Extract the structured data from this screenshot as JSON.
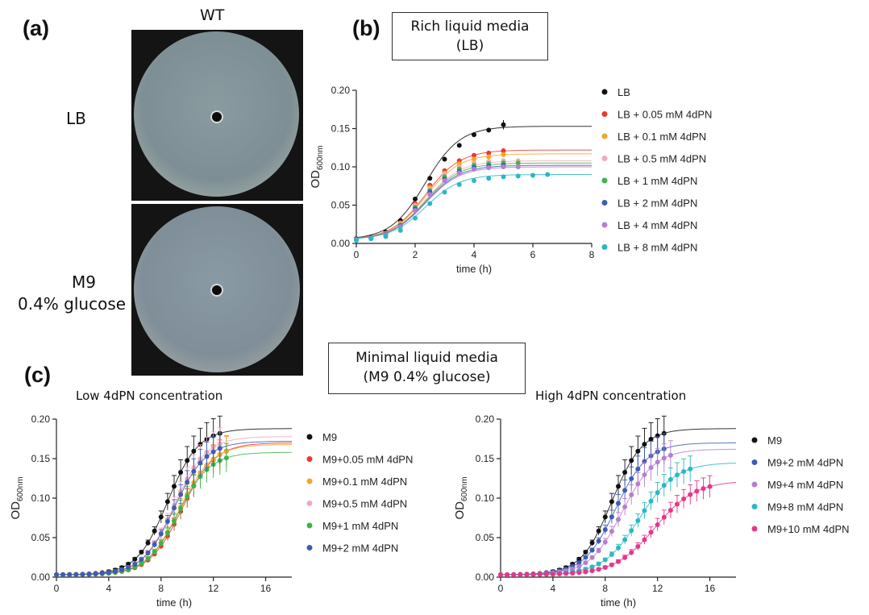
{
  "figure": {
    "panel_a": {
      "label": "(a)",
      "column_title": "WT",
      "row_labels": {
        "lb": "LB",
        "m9_line1": "M9",
        "m9_line2": "0.4% glucose"
      }
    },
    "panel_b": {
      "label": "(b)",
      "box_line1": "Rich liquid media",
      "box_line2": "(LB)"
    },
    "panel_c": {
      "label": "(c)",
      "box_line1": "Minimal liquid media",
      "box_line2": "(M9 0.4% glucose)",
      "left_title": "Low 4dPN concentration",
      "right_title": "High 4dPN concentration"
    }
  },
  "chart_data": [
    {
      "id": "b",
      "type": "scatter",
      "title": "",
      "xlabel": "time (h)",
      "ylabel": "OD",
      "ylabel_sub": "600nm",
      "xlim": [
        0,
        8
      ],
      "ylim": [
        0,
        0.2
      ],
      "xticks": [
        0,
        2,
        4,
        6,
        8
      ],
      "yticks": [
        0.0,
        0.05,
        0.1,
        0.15,
        0.2
      ],
      "x": [
        0,
        0.5,
        1,
        1.5,
        2,
        2.5,
        3,
        3.5,
        4,
        4.5,
        5,
        5.5,
        6,
        6.5
      ],
      "series": [
        {
          "name": "LB",
          "color": "#111111",
          "values": [
            0.006,
            0.008,
            0.015,
            0.03,
            0.058,
            0.085,
            0.11,
            0.128,
            0.142,
            0.148,
            0.155,
            null,
            null,
            null
          ],
          "fit_max": 0.153
        },
        {
          "name": "LB + 0.05 mM 4dPN",
          "color": "#e8392e",
          "values": [
            0.005,
            0.007,
            0.013,
            0.027,
            0.052,
            0.076,
            0.095,
            0.108,
            0.115,
            0.118,
            0.121,
            null,
            null,
            null
          ],
          "fit_max": 0.122
        },
        {
          "name": "LB + 0.1 mM 4dPN",
          "color": "#f5a623",
          "values": [
            0.005,
            0.007,
            0.013,
            0.026,
            0.05,
            0.073,
            0.092,
            0.104,
            0.11,
            0.113,
            0.116,
            null,
            null,
            null
          ],
          "fit_max": 0.117
        },
        {
          "name": "LB + 0.5 mM 4dPN",
          "color": "#f2aab8",
          "values": [
            0.005,
            0.007,
            0.012,
            0.025,
            0.049,
            0.071,
            0.09,
            0.1,
            0.105,
            0.107,
            0.108,
            0.108,
            null,
            null
          ],
          "fit_max": 0.108
        },
        {
          "name": "LB + 1 mM 4dPN",
          "color": "#3cb54a",
          "values": [
            0.005,
            0.007,
            0.012,
            0.024,
            0.047,
            0.069,
            0.087,
            0.097,
            0.102,
            0.104,
            0.105,
            0.105,
            null,
            null
          ],
          "fit_max": 0.105
        },
        {
          "name": "LB + 2 mM 4dPN",
          "color": "#3f5bb5",
          "values": [
            0.005,
            0.007,
            0.012,
            0.023,
            0.045,
            0.067,
            0.084,
            0.094,
            0.099,
            0.101,
            0.102,
            null,
            null,
            null
          ],
          "fit_max": 0.102
        },
        {
          "name": "LB + 4 mM 4dPN",
          "color": "#b57fcf",
          "values": [
            0.005,
            0.007,
            0.011,
            0.022,
            0.043,
            0.064,
            0.082,
            0.092,
            0.097,
            0.099,
            0.1,
            0.1,
            null,
            null
          ],
          "fit_max": 0.1
        },
        {
          "name": "LB + 8 mM 4dPN",
          "color": "#2bb8c4",
          "values": [
            0.004,
            0.006,
            0.009,
            0.017,
            0.033,
            0.052,
            0.067,
            0.077,
            0.082,
            0.085,
            0.087,
            0.088,
            0.089,
            0.09
          ],
          "fit_max": 0.09
        }
      ]
    },
    {
      "id": "c-low",
      "type": "scatter",
      "title": "Low 4dPN concentration",
      "xlabel": "time (h)",
      "ylabel": "OD",
      "ylabel_sub": "600nm",
      "xlim": [
        0,
        18
      ],
      "ylim": [
        0,
        0.2
      ],
      "xticks": [
        0,
        4,
        8,
        12,
        16
      ],
      "yticks": [
        0.0,
        0.05,
        0.1,
        0.15,
        0.2
      ],
      "series": [
        {
          "name": "M9",
          "color": "#111111",
          "max": 0.188,
          "mid": 8.5,
          "rate": 0.85,
          "xend": 12.5
        },
        {
          "name": "M9+0.05 mM 4dPN",
          "color": "#e8392e",
          "max": 0.17,
          "mid": 9.6,
          "rate": 0.8,
          "xend": 13
        },
        {
          "name": "M9+0.1 mM 4dPN",
          "color": "#f5a623",
          "max": 0.168,
          "mid": 9.4,
          "rate": 0.8,
          "xend": 13
        },
        {
          "name": "M9+0.5 mM 4dPN",
          "color": "#f2aab8",
          "max": 0.178,
          "mid": 9.0,
          "rate": 0.82,
          "xend": 12.5
        },
        {
          "name": "M9+1 mM 4dPN",
          "color": "#3cb54a",
          "max": 0.158,
          "mid": 9.3,
          "rate": 0.82,
          "xend": 13
        },
        {
          "name": "M9+2 mM 4dPN",
          "color": "#3f5bb5",
          "max": 0.172,
          "mid": 9.0,
          "rate": 0.82,
          "xend": 12.5
        }
      ]
    },
    {
      "id": "c-high",
      "type": "scatter",
      "title": "High 4dPN concentration",
      "xlabel": "time (h)",
      "ylabel": "OD",
      "ylabel_sub": "600nm",
      "xlim": [
        0,
        18
      ],
      "ylim": [
        0,
        0.2
      ],
      "xticks": [
        0,
        4,
        8,
        12,
        16
      ],
      "yticks": [
        0.0,
        0.05,
        0.1,
        0.15,
        0.2
      ],
      "series": [
        {
          "name": "M9",
          "color": "#111111",
          "max": 0.188,
          "mid": 8.5,
          "rate": 0.85,
          "xend": 12.5
        },
        {
          "name": "M9+2 mM 4dPN",
          "color": "#3f5bb5",
          "max": 0.17,
          "mid": 8.8,
          "rate": 0.82,
          "xend": 12.5
        },
        {
          "name": "M9+4 mM 4dPN",
          "color": "#b57fcf",
          "max": 0.162,
          "mid": 9.3,
          "rate": 0.8,
          "xend": 13
        },
        {
          "name": "M9+8 mM 4dPN",
          "color": "#2bb8c4",
          "max": 0.145,
          "mid": 10.6,
          "rate": 0.72,
          "xend": 14.5
        },
        {
          "name": "M9+10 mM 4dPN",
          "color": "#e8358a",
          "max": 0.122,
          "mid": 11.8,
          "rate": 0.65,
          "xend": 16
        }
      ]
    }
  ]
}
